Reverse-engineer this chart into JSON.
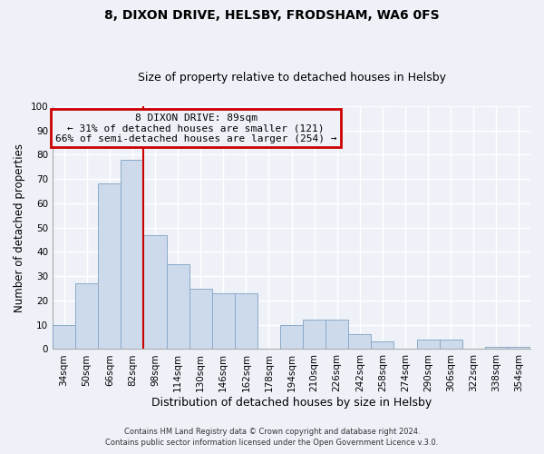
{
  "title1": "8, DIXON DRIVE, HELSBY, FRODSHAM, WA6 0FS",
  "title2": "Size of property relative to detached houses in Helsby",
  "xlabel": "Distribution of detached houses by size in Helsby",
  "ylabel": "Number of detached properties",
  "categories": [
    "34sqm",
    "50sqm",
    "66sqm",
    "82sqm",
    "98sqm",
    "114sqm",
    "130sqm",
    "146sqm",
    "162sqm",
    "178sqm",
    "194sqm",
    "210sqm",
    "226sqm",
    "242sqm",
    "258sqm",
    "274sqm",
    "290sqm",
    "306sqm",
    "322sqm",
    "338sqm",
    "354sqm"
  ],
  "values": [
    10,
    27,
    68,
    78,
    47,
    35,
    25,
    23,
    23,
    0,
    10,
    12,
    12,
    6,
    3,
    0,
    4,
    4,
    0,
    1,
    1
  ],
  "bar_color": "#cddaeb",
  "bar_edge_color": "#8aaac8",
  "ylim": [
    0,
    100
  ],
  "yticks": [
    0,
    10,
    20,
    30,
    40,
    50,
    60,
    70,
    80,
    90,
    100
  ],
  "vline_x": 3.5,
  "annotation_title": "8 DIXON DRIVE: 89sqm",
  "annotation_line1": "← 31% of detached houses are smaller (121)",
  "annotation_line2": "66% of semi-detached houses are larger (254) →",
  "annotation_box_color": "#cc0000",
  "footer1": "Contains HM Land Registry data © Crown copyright and database right 2024.",
  "footer2": "Contains public sector information licensed under the Open Government Licence v.3.0.",
  "bg_color": "#eef2f8",
  "grid_color": "#d8e0ec",
  "title_fontsize": 10,
  "subtitle_fontsize": 9,
  "tick_fontsize": 7.5,
  "ylabel_fontsize": 8.5,
  "xlabel_fontsize": 9
}
